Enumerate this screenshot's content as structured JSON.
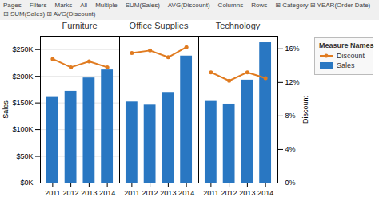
{
  "chart_data": [
    {
      "type": "bar",
      "title": "Furniture",
      "categories": [
        "2011",
        "2012",
        "2013",
        "2014"
      ],
      "series": [
        {
          "name": "Sales",
          "type": "bar",
          "color": "#2977C2",
          "values": [
            162000,
            172000,
            197000,
            212000
          ]
        },
        {
          "name": "Discount",
          "type": "line",
          "axis": "y2",
          "color": "#E07B20",
          "marker": "circle",
          "values": [
            0.148,
            0.138,
            0.145,
            0.138
          ]
        }
      ],
      "ylabel": "Sales",
      "ylim": [
        0,
        275000
      ],
      "yticks": [
        {
          "value": 0,
          "label": "$0K"
        },
        {
          "value": 50000,
          "label": "$50K"
        },
        {
          "value": 100000,
          "label": "$100K"
        },
        {
          "value": 150000,
          "label": "$150K"
        },
        {
          "value": 200000,
          "label": "$200K"
        },
        {
          "value": 250000,
          "label": "$250K"
        }
      ],
      "y2lim": [
        0,
        0.175
      ],
      "grid": true,
      "annotations": [
        "Pages",
        "Filters",
        "Marks",
        "All",
        "Multiple",
        "SUM(Sales)",
        "AVG(Discount)",
        "Columns",
        "Rows",
        "⊞ Category   ⊞ YEAR(Order Date)",
        "⊞ SUM(Sales)   ⊞ AVG(Discount)"
      ]
    },
    {
      "type": "bar",
      "title": "Office Supplies",
      "categories": [
        "2011",
        "2012",
        "2013",
        "2014"
      ],
      "series": [
        {
          "name": "Sales",
          "type": "bar",
          "color": "#2977C2",
          "values": [
            152000,
            146000,
            170000,
            238000
          ]
        },
        {
          "name": "Discount",
          "type": "line",
          "axis": "y2",
          "color": "#E07B20",
          "marker": "circle",
          "values": [
            0.155,
            0.158,
            0.15,
            0.162
          ]
        }
      ],
      "ylim": [
        0,
        275000
      ],
      "y2lim": [
        0,
        0.175
      ],
      "tick_labels": "x"
    },
    {
      "type": "bar",
      "title": "Technology",
      "categories": [
        "2011",
        "2012",
        "2013",
        "2014"
      ],
      "series": [
        {
          "name": "Sales",
          "type": "bar",
          "color": "#2977C2",
          "values": [
            153000,
            148000,
            193000,
            263000
          ]
        },
        {
          "name": "Discount",
          "type": "line",
          "axis": "y2",
          "color": "#E07B20",
          "marker": "circle",
          "values": [
            0.132,
            0.122,
            0.132,
            0.125
          ]
        }
      ],
      "ylim": [
        0,
        275000
      ],
      "y2lim": [
        0,
        0.175
      ],
      "y2label": "Discount",
      "y2ticks": [
        {
          "value": 0,
          "label": "0%"
        },
        {
          "value": 0.04,
          "label": "4%"
        },
        {
          "value": 0.08,
          "label": "8%"
        },
        {
          "value": 0.12,
          "label": "12%"
        },
        {
          "value": 0.16,
          "label": "16%"
        }
      ],
      "legend": "right",
      "legend_title": "Measure Names"
    }
  ]
}
